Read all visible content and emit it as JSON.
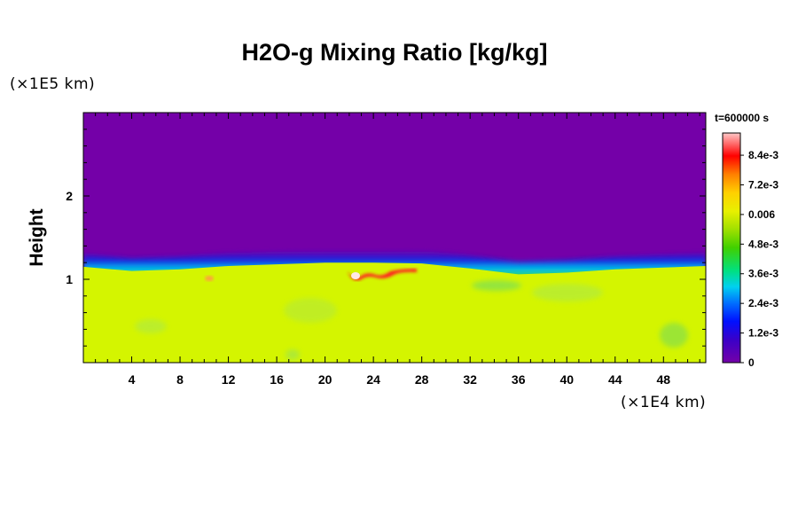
{
  "chart_data": {
    "type": "heatmap",
    "title": "H2O-g Mixing Ratio [kg/kg]",
    "ylabel": "Height",
    "x_unit": "(×1E4 km)",
    "y_unit": "(×1E5 km)",
    "time_label": "t=600000 s",
    "xlim": [
      0,
      51.5
    ],
    "ylim": [
      0,
      3.0
    ],
    "x_ticks": [
      4,
      8,
      12,
      16,
      20,
      24,
      28,
      32,
      36,
      40,
      44,
      48
    ],
    "y_ticks": [
      1,
      2
    ],
    "colorbar": {
      "ticks": [
        "8.4e-3",
        "7.2e-3",
        "0.006",
        "4.8e-3",
        "3.6e-3",
        "2.4e-3",
        "1.2e-3",
        "0"
      ],
      "tick_values": [
        0.0084,
        0.0072,
        0.006,
        0.0048,
        0.0036,
        0.0024,
        0.0012,
        0
      ],
      "vmin": 0,
      "vmax": 0.0093
    },
    "field_summary": {
      "upper_value": 0,
      "lower_value": 0.0062,
      "interface_height": [
        [
          0,
          1.15
        ],
        [
          4,
          1.1
        ],
        [
          8,
          1.12
        ],
        [
          12,
          1.16
        ],
        [
          16,
          1.18
        ],
        [
          20,
          1.2
        ],
        [
          24,
          1.2
        ],
        [
          28,
          1.19
        ],
        [
          32,
          1.13
        ],
        [
          36,
          1.06
        ],
        [
          40,
          1.08
        ],
        [
          44,
          1.12
        ],
        [
          48,
          1.14
        ],
        [
          51.5,
          1.16
        ]
      ],
      "max_patch": {
        "x_range": [
          22,
          27
        ],
        "height": 1.1,
        "value": 0.0092
      }
    }
  },
  "colors": {
    "upper": "#7400a8",
    "lower": "#d4f500"
  }
}
